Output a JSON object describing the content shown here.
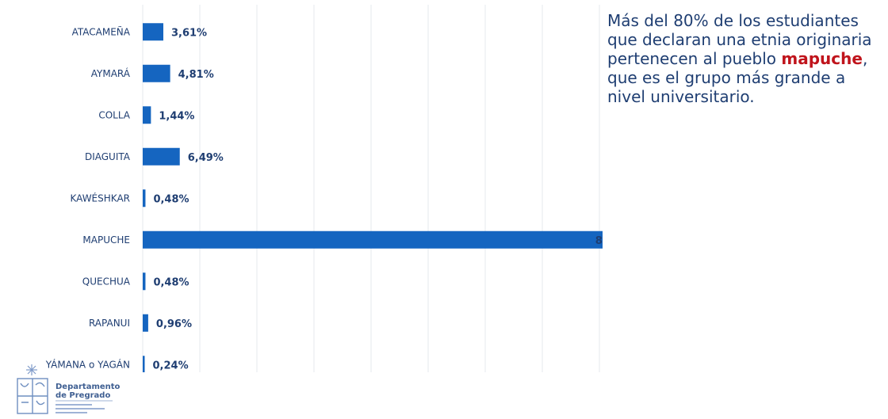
{
  "chart_data": {
    "type": "bar",
    "orientation": "horizontal",
    "categories": [
      "ATACAMEÑA",
      "AYMARÁ",
      "COLLA",
      "DIAGUITA",
      "KAWÉSHKAR",
      "MAPUCHE",
      "QUECHUA",
      "RAPANUI",
      "YÁMANA o YAGÁN"
    ],
    "values": [
      3.61,
      4.81,
      1.44,
      6.49,
      0.48,
      81.49,
      0.48,
      0.96,
      0.24
    ],
    "value_labels": [
      "3,61%",
      "4,81%",
      "1,44%",
      "6,49%",
      "0,48%",
      "81,49%",
      "0,48%",
      "0,96%",
      "0,24%"
    ],
    "xlim": [
      0,
      90
    ],
    "grid": true,
    "bar_color": "#1565c0",
    "label_color": "#1f3e72"
  },
  "caption": {
    "before": "Más del 80% de los estudiantes que declaran una etnia originaria pertenecen al pueblo ",
    "highlight": "mapuche",
    "after": ", que es el grupo más grande a nivel universitario.",
    "highlight_color": "#c0141c"
  },
  "logo": {
    "line1": "Departamento",
    "line2": "de Pregrado"
  }
}
